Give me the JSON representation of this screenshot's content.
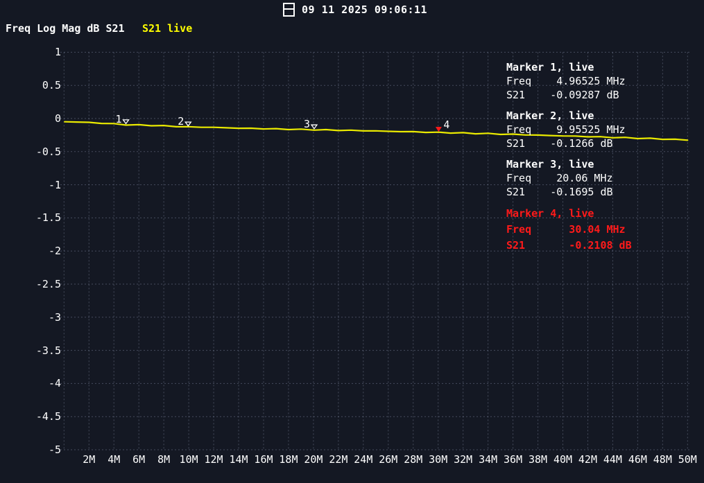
{
  "app": {
    "datetime": "09 11 2025 09:06:11"
  },
  "header": {
    "title": "Freq Log Mag dB S21",
    "trace_label": "S21 live"
  },
  "colors": {
    "background": "#141823",
    "text": "#ffffff",
    "trace": "#eaea00",
    "trace_label_color": "#ffff00",
    "grid": "rgba(168,180,205,0.34)",
    "active_marker": "#ff1a1a",
    "marker": "#ffffff"
  },
  "chart_data": {
    "type": "line",
    "title": "Freq Log Mag dB S21",
    "grid": true,
    "x_axis": {
      "tick_labels": [
        "2M",
        "4M",
        "6M",
        "8M",
        "10M",
        "12M",
        "14M",
        "16M",
        "18M",
        "20M",
        "22M",
        "24M",
        "26M",
        "28M",
        "30M",
        "32M",
        "34M",
        "36M",
        "38M",
        "40M",
        "42M",
        "44M",
        "46M",
        "48M",
        "50M"
      ],
      "tick_mhz": [
        2,
        4,
        6,
        8,
        10,
        12,
        14,
        16,
        18,
        20,
        22,
        24,
        26,
        28,
        30,
        32,
        34,
        36,
        38,
        40,
        42,
        44,
        46,
        48,
        50
      ],
      "xlim_mhz": [
        0,
        50.4
      ]
    },
    "y_axis": {
      "tick_labels": [
        "1",
        "0.5",
        "0",
        "-0.5",
        "-1",
        "-1.5",
        "-2",
        "-2.5",
        "-3",
        "-3.5",
        "-4",
        "-4.5",
        "-5"
      ],
      "tick_values": [
        1,
        0.5,
        0,
        -0.5,
        -1,
        -1.5,
        -2,
        -2.5,
        -3,
        -3.5,
        -4,
        -4.5,
        -5
      ],
      "ylim_db": [
        -5,
        1
      ]
    },
    "series": [
      {
        "name": "S21 live",
        "color": "#eaea00",
        "x_mhz": [
          0.05,
          1,
          2,
          3,
          4,
          4.96525,
          6,
          7,
          8,
          9,
          9.95525,
          11,
          12,
          13,
          14,
          15,
          16,
          17,
          18,
          19,
          20.06,
          21,
          22,
          23,
          24,
          25,
          26,
          27,
          28,
          29,
          30.04,
          31,
          32,
          33,
          34,
          35,
          36,
          37,
          38,
          39,
          40,
          41,
          42,
          43,
          44,
          45,
          46,
          47,
          48,
          49,
          50
        ],
        "y_db": [
          -0.048,
          -0.052,
          -0.06,
          -0.07,
          -0.082,
          -0.0929,
          -0.099,
          -0.104,
          -0.112,
          -0.119,
          -0.1266,
          -0.13,
          -0.134,
          -0.14,
          -0.146,
          -0.149,
          -0.154,
          -0.158,
          -0.161,
          -0.166,
          -0.1695,
          -0.173,
          -0.177,
          -0.18,
          -0.184,
          -0.188,
          -0.193,
          -0.197,
          -0.201,
          -0.206,
          -0.2108,
          -0.215,
          -0.22,
          -0.225,
          -0.229,
          -0.235,
          -0.24,
          -0.246,
          -0.251,
          -0.257,
          -0.262,
          -0.268,
          -0.273,
          -0.279,
          -0.285,
          -0.291,
          -0.297,
          -0.303,
          -0.31,
          -0.317,
          -0.324
        ]
      }
    ]
  },
  "markers": [
    {
      "number": "1",
      "freq_mhz": 4.96525,
      "s21_db": -0.09287,
      "active": false,
      "info": {
        "title": "Marker 1, live",
        "rows": [
          {
            "label": "Freq",
            "value": " 4.96525 MHz"
          },
          {
            "label": "S21",
            "value": "-0.09287 dB"
          }
        ]
      }
    },
    {
      "number": "2",
      "freq_mhz": 9.95525,
      "s21_db": -0.1266,
      "active": false,
      "info": {
        "title": "Marker 2, live",
        "rows": [
          {
            "label": "Freq",
            "value": " 9.95525 MHz"
          },
          {
            "label": "S21",
            "value": "-0.1266 dB"
          }
        ]
      }
    },
    {
      "number": "3",
      "freq_mhz": 20.06,
      "s21_db": -0.1695,
      "active": false,
      "info": {
        "title": "Marker 3, live",
        "rows": [
          {
            "label": "Freq",
            "value": " 20.06 MHz"
          },
          {
            "label": "S21",
            "value": "-0.1695 dB"
          }
        ]
      }
    },
    {
      "number": "4",
      "freq_mhz": 30.04,
      "s21_db": -0.2108,
      "active": true,
      "info": {
        "title": "Marker 4, live",
        "rows": [
          {
            "label": "Freq",
            "value": "   30.04 MHz"
          },
          {
            "label": "S21",
            "value": "   -0.2108 dB"
          }
        ]
      }
    }
  ]
}
